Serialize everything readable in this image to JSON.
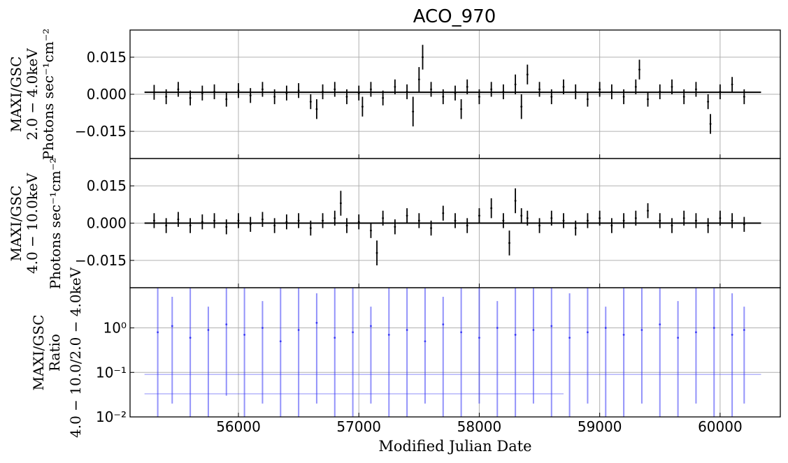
{
  "chart_data": [
    {
      "type": "line",
      "panel": "top",
      "title": "ACO_970",
      "ylabel_lines": [
        "MAXI/GSC",
        "2.0 − 4.0keV",
        "Photons sec⁻¹cm⁻²"
      ],
      "ylim": [
        -0.026,
        0.026
      ],
      "yticks": [
        -0.015,
        0.0,
        0.015
      ],
      "ytick_labels": [
        "−0.015",
        "0.000",
        "0.015"
      ],
      "grid": true,
      "series": [
        {
          "x": [
            55300,
            55400,
            55500,
            55600,
            55700,
            55800,
            55900,
            56000,
            56100,
            56200,
            56300,
            56400,
            56500,
            56600,
            56650,
            56700,
            56800,
            56900,
            57000,
            57030,
            57100,
            57200,
            57300,
            57400,
            57450,
            57500,
            57530,
            57600,
            57700,
            57800,
            57850,
            57900,
            58000,
            58100,
            58200,
            58300,
            58350,
            58400,
            58500,
            58600,
            58700,
            58800,
            58900,
            59000,
            59100,
            59200,
            59300,
            59330,
            59400,
            59500,
            59600,
            59700,
            59800,
            59900,
            59920,
            60000,
            60100,
            60200
          ],
          "y": [
            0.0008,
            -0.001,
            0.002,
            -0.0015,
            0.0005,
            0.001,
            -0.002,
            0.0015,
            -0.0005,
            0.002,
            -0.001,
            0.0005,
            0.0015,
            -0.003,
            -0.006,
            0.001,
            0.002,
            -0.001,
            0.0005,
            -0.005,
            0.002,
            -0.0015,
            0.003,
            0.001,
            -0.007,
            0.006,
            0.015,
            0.002,
            -0.001,
            0.0005,
            -0.006,
            0.003,
            -0.001,
            0.002,
            0.001,
            0.004,
            -0.005,
            0.008,
            0.002,
            -0.001,
            0.003,
            0.001,
            -0.002,
            0.002,
            0.001,
            -0.001,
            0.003,
            0.01,
            -0.002,
            0.001,
            0.003,
            -0.001,
            0.002,
            -0.003,
            -0.012,
            0.001,
            0.004,
            -0.001
          ],
          "yerr": [
            0.003,
            0.003,
            0.003,
            0.003,
            0.003,
            0.003,
            0.003,
            0.003,
            0.003,
            0.003,
            0.003,
            0.003,
            0.003,
            0.003,
            0.004,
            0.003,
            0.003,
            0.003,
            0.003,
            0.004,
            0.003,
            0.003,
            0.003,
            0.003,
            0.006,
            0.005,
            0.005,
            0.003,
            0.003,
            0.003,
            0.004,
            0.003,
            0.003,
            0.003,
            0.003,
            0.004,
            0.005,
            0.004,
            0.003,
            0.003,
            0.003,
            0.003,
            0.003,
            0.003,
            0.003,
            0.003,
            0.003,
            0.004,
            0.003,
            0.003,
            0.003,
            0.003,
            0.003,
            0.003,
            0.004,
            0.003,
            0.003,
            0.003
          ]
        }
      ],
      "hlines": [
        {
          "x0": 55220,
          "x1": 60340,
          "y": 0.0008
        }
      ]
    },
    {
      "type": "line",
      "panel": "middle",
      "ylabel_lines": [
        "MAXI/GSC",
        "4.0 − 10.0keV",
        "Photons sec⁻¹cm⁻²"
      ],
      "ylim": [
        -0.026,
        0.026
      ],
      "yticks": [
        -0.015,
        0.0,
        0.015
      ],
      "ytick_labels": [
        "−0.015",
        "0.000",
        "0.015"
      ],
      "grid": true,
      "series": [
        {
          "x": [
            55300,
            55400,
            55500,
            55600,
            55700,
            55800,
            55900,
            56000,
            56100,
            56200,
            56300,
            56400,
            56500,
            56600,
            56700,
            56800,
            56850,
            56900,
            57000,
            57100,
            57150,
            57200,
            57300,
            57400,
            57500,
            57600,
            57700,
            57800,
            57900,
            58000,
            58100,
            58200,
            58250,
            58300,
            58350,
            58400,
            58500,
            58600,
            58700,
            58800,
            58900,
            59000,
            59100,
            59200,
            59300,
            59400,
            59500,
            59600,
            59700,
            59800,
            59900,
            60000,
            60100,
            60200
          ],
          "y": [
            0.001,
            -0.001,
            0.0015,
            -0.001,
            0.0005,
            0.001,
            -0.0015,
            0.001,
            -0.0005,
            0.0015,
            -0.001,
            0.0005,
            0.001,
            -0.002,
            0.001,
            0.002,
            0.008,
            -0.001,
            0.0005,
            -0.003,
            -0.012,
            0.002,
            -0.0015,
            0.003,
            0.001,
            -0.002,
            0.004,
            0.001,
            -0.001,
            0.003,
            0.006,
            0.001,
            -0.008,
            0.009,
            0.003,
            0.002,
            -0.001,
            0.002,
            0.001,
            -0.002,
            0.001,
            0.002,
            -0.001,
            0.001,
            0.002,
            0.005,
            0.001,
            -0.001,
            0.002,
            0.001,
            -0.001,
            0.002,
            0.001,
            -0.0005
          ],
          "yerr": [
            0.003,
            0.003,
            0.003,
            0.003,
            0.003,
            0.003,
            0.003,
            0.003,
            0.003,
            0.003,
            0.003,
            0.003,
            0.003,
            0.003,
            0.003,
            0.003,
            0.005,
            0.003,
            0.003,
            0.003,
            0.005,
            0.003,
            0.003,
            0.003,
            0.003,
            0.003,
            0.003,
            0.003,
            0.003,
            0.003,
            0.004,
            0.003,
            0.005,
            0.005,
            0.003,
            0.003,
            0.003,
            0.003,
            0.003,
            0.003,
            0.003,
            0.003,
            0.003,
            0.003,
            0.003,
            0.003,
            0.003,
            0.003,
            0.003,
            0.003,
            0.003,
            0.003,
            0.003,
            0.003
          ]
        }
      ],
      "hlines": [
        {
          "x0": 55220,
          "x1": 60340,
          "y": 0.0
        }
      ]
    },
    {
      "type": "line",
      "panel": "bottom",
      "ylabel_lines": [
        "MAXI/GSC",
        "Ratio",
        "4.0 − 10.0/2.0 − 4.0keV"
      ],
      "xlabel": "Modified Julian Date",
      "yscale": "log",
      "ylim": [
        0.01,
        8
      ],
      "yticks": [
        0.01,
        0.1,
        1
      ],
      "ytick_labels": [
        "10⁻²",
        "10⁻¹",
        "10⁰"
      ],
      "xlim": [
        55100,
        60500
      ],
      "xticks": [
        56000,
        57000,
        58000,
        59000,
        60000
      ],
      "xtick_labels": [
        "56000",
        "57000",
        "58000",
        "59000",
        "60000"
      ],
      "grid": true,
      "color": "#3a3af5",
      "series": [
        {
          "x": [
            55330,
            55450,
            55600,
            55750,
            55900,
            56050,
            56200,
            56350,
            56500,
            56650,
            56800,
            56950,
            57100,
            57250,
            57400,
            57550,
            57700,
            57850,
            58000,
            58150,
            58300,
            58450,
            58600,
            58750,
            58900,
            59050,
            59200,
            59350,
            59500,
            59650,
            59800,
            59950,
            60100,
            60200
          ],
          "y": [
            0.8,
            1.1,
            0.6,
            0.9,
            1.2,
            0.7,
            1.0,
            0.5,
            0.9,
            1.3,
            0.6,
            0.8,
            1.1,
            0.7,
            0.9,
            0.5,
            1.2,
            0.8,
            0.6,
            1.0,
            0.7,
            0.9,
            1.1,
            0.6,
            0.8,
            1.0,
            0.7,
            0.9,
            1.2,
            0.6,
            0.8,
            1.0,
            0.7,
            0.9
          ],
          "ylow": [
            0.01,
            0.02,
            0.01,
            0.01,
            0.03,
            0.01,
            0.02,
            0.01,
            0.01,
            0.02,
            0.01,
            0.01,
            0.02,
            0.01,
            0.01,
            0.02,
            0.01,
            0.01,
            0.02,
            0.01,
            0.01,
            0.02,
            0.01,
            0.01,
            0.02,
            0.01,
            0.01,
            0.02,
            0.01,
            0.01,
            0.02,
            0.01,
            0.01,
            0.02
          ],
          "yhigh": [
            8,
            5,
            8,
            3,
            8,
            8,
            4,
            8,
            8,
            6,
            8,
            8,
            3,
            8,
            8,
            8,
            5,
            8,
            8,
            4,
            8,
            8,
            8,
            6,
            8,
            3,
            8,
            8,
            8,
            4,
            8,
            8,
            6,
            3
          ]
        }
      ],
      "hlines": [
        {
          "x0": 55220,
          "x1": 58700,
          "y": 0.033
        },
        {
          "x0": 55220,
          "x1": 60340,
          "y": 0.09
        }
      ]
    }
  ]
}
